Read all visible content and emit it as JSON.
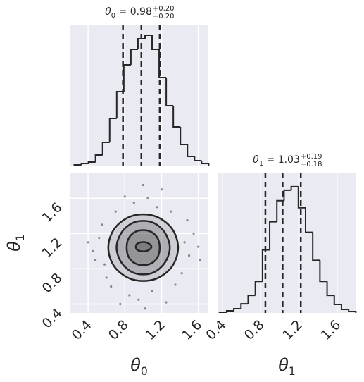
{
  "chart_data": [
    {
      "type": "histogram",
      "title": {
        "symbol": "θ",
        "sub": "0",
        "main": " = 0.98",
        "upper": "+0.20",
        "lower": "−0.20"
      },
      "bins": [
        0.25,
        0.327,
        0.404,
        0.481,
        0.558,
        0.635,
        0.712,
        0.789,
        0.866,
        0.943,
        1.02,
        1.097,
        1.174,
        1.251,
        1.328,
        1.405,
        1.482,
        1.559,
        1.636,
        1.713
      ],
      "values": [
        1,
        3,
        5,
        15,
        33,
        67,
        105,
        143,
        165,
        180,
        185,
        165,
        125,
        85,
        55,
        30,
        13,
        7,
        3
      ],
      "quantiles": [
        0.78,
        0.98,
        1.18
      ],
      "xlim": [
        0.2,
        1.71
      ],
      "ylim": [
        0,
        200
      ],
      "color": "#262626"
    },
    {
      "type": "scatter",
      "x": [
        0.45,
        0.52,
        0.58,
        0.55,
        0.6,
        0.48,
        1.45,
        1.5,
        1.55,
        1.42,
        1.48,
        1.6,
        0.9,
        1.05,
        1.15,
        0.85,
        0.95,
        1.1,
        0.7,
        1.3,
        0.65,
        1.35,
        0.4,
        1.62,
        1.0,
        0.75,
        1.25,
        0.8,
        1.2,
        1.02
      ],
      "y": [
        1.0,
        1.15,
        0.85,
        1.3,
        0.7,
        0.9,
        1.1,
        0.95,
        1.2,
        0.75,
        1.35,
        1.05,
        1.55,
        1.6,
        1.5,
        0.5,
        0.45,
        0.55,
        1.45,
        1.45,
        0.6,
        0.62,
        1.1,
        0.9,
        1.75,
        0.4,
        0.42,
        1.62,
        1.7,
        0.35
      ],
      "contours": [
        {
          "x": [
            1.38,
            1.31,
            1.12,
            0.88,
            0.69,
            0.62,
            0.69,
            0.88,
            1.12,
            1.31
          ],
          "y": [
            1.04,
            1.26,
            1.4,
            1.4,
            1.26,
            1.04,
            0.82,
            0.68,
            0.68,
            0.82
          ]
        },
        {
          "x": [
            1.29,
            1.23,
            1.09,
            0.91,
            0.77,
            0.71,
            0.77,
            0.91,
            1.09,
            1.23
          ],
          "y": [
            1.04,
            1.22,
            1.33,
            1.33,
            1.22,
            1.04,
            0.86,
            0.75,
            0.75,
            0.86
          ]
        },
        {
          "x": [
            1.18,
            1.15,
            1.06,
            0.94,
            0.85,
            0.82,
            0.85,
            0.94,
            1.06,
            1.15
          ],
          "y": [
            1.04,
            1.16,
            1.23,
            1.23,
            1.16,
            1.04,
            0.92,
            0.85,
            0.85,
            0.92
          ]
        },
        {
          "x": [
            1.09,
            1.07,
            1.03,
            0.97,
            0.93,
            0.92,
            0.93,
            0.97,
            1.03,
            1.07
          ],
          "y": [
            1.05,
            1.08,
            1.1,
            1.1,
            1.08,
            1.05,
            1.02,
            1.0,
            1.0,
            1.02
          ]
        }
      ],
      "xlim": [
        0.2,
        1.71
      ],
      "ylim": [
        0.3,
        1.89
      ],
      "xticks": [
        0.4,
        0.8,
        1.2,
        1.6
      ],
      "yticks": [
        0.4,
        0.8,
        1.2,
        1.6
      ],
      "xlabel": {
        "symbol": "θ",
        "sub": "0"
      },
      "ylabel": {
        "symbol": "θ",
        "sub": "1"
      },
      "color": "#262626",
      "grid": true
    },
    {
      "type": "histogram",
      "title": {
        "symbol": "θ",
        "sub": "1",
        "main": " = 1.03",
        "upper": "+0.19",
        "lower": "−0.18"
      },
      "bins": [
        0.37,
        0.445,
        0.52,
        0.595,
        0.67,
        0.745,
        0.82,
        0.895,
        0.97,
        1.045,
        1.12,
        1.195,
        1.27,
        1.345,
        1.42,
        1.495,
        1.57,
        1.645,
        1.72,
        1.795
      ],
      "values": [
        1,
        3,
        6,
        13,
        25,
        45,
        90,
        130,
        160,
        175,
        180,
        150,
        115,
        75,
        45,
        25,
        12,
        5,
        2
      ],
      "quantiles": [
        0.85,
        1.03,
        1.22
      ],
      "xlim": [
        0.35,
        1.8
      ],
      "ylim": [
        0,
        200
      ],
      "xticks": [
        0.4,
        0.8,
        1.2,
        1.6
      ],
      "xlabel": {
        "symbol": "θ",
        "sub": "1"
      },
      "color": "#262626",
      "grid": true
    }
  ]
}
